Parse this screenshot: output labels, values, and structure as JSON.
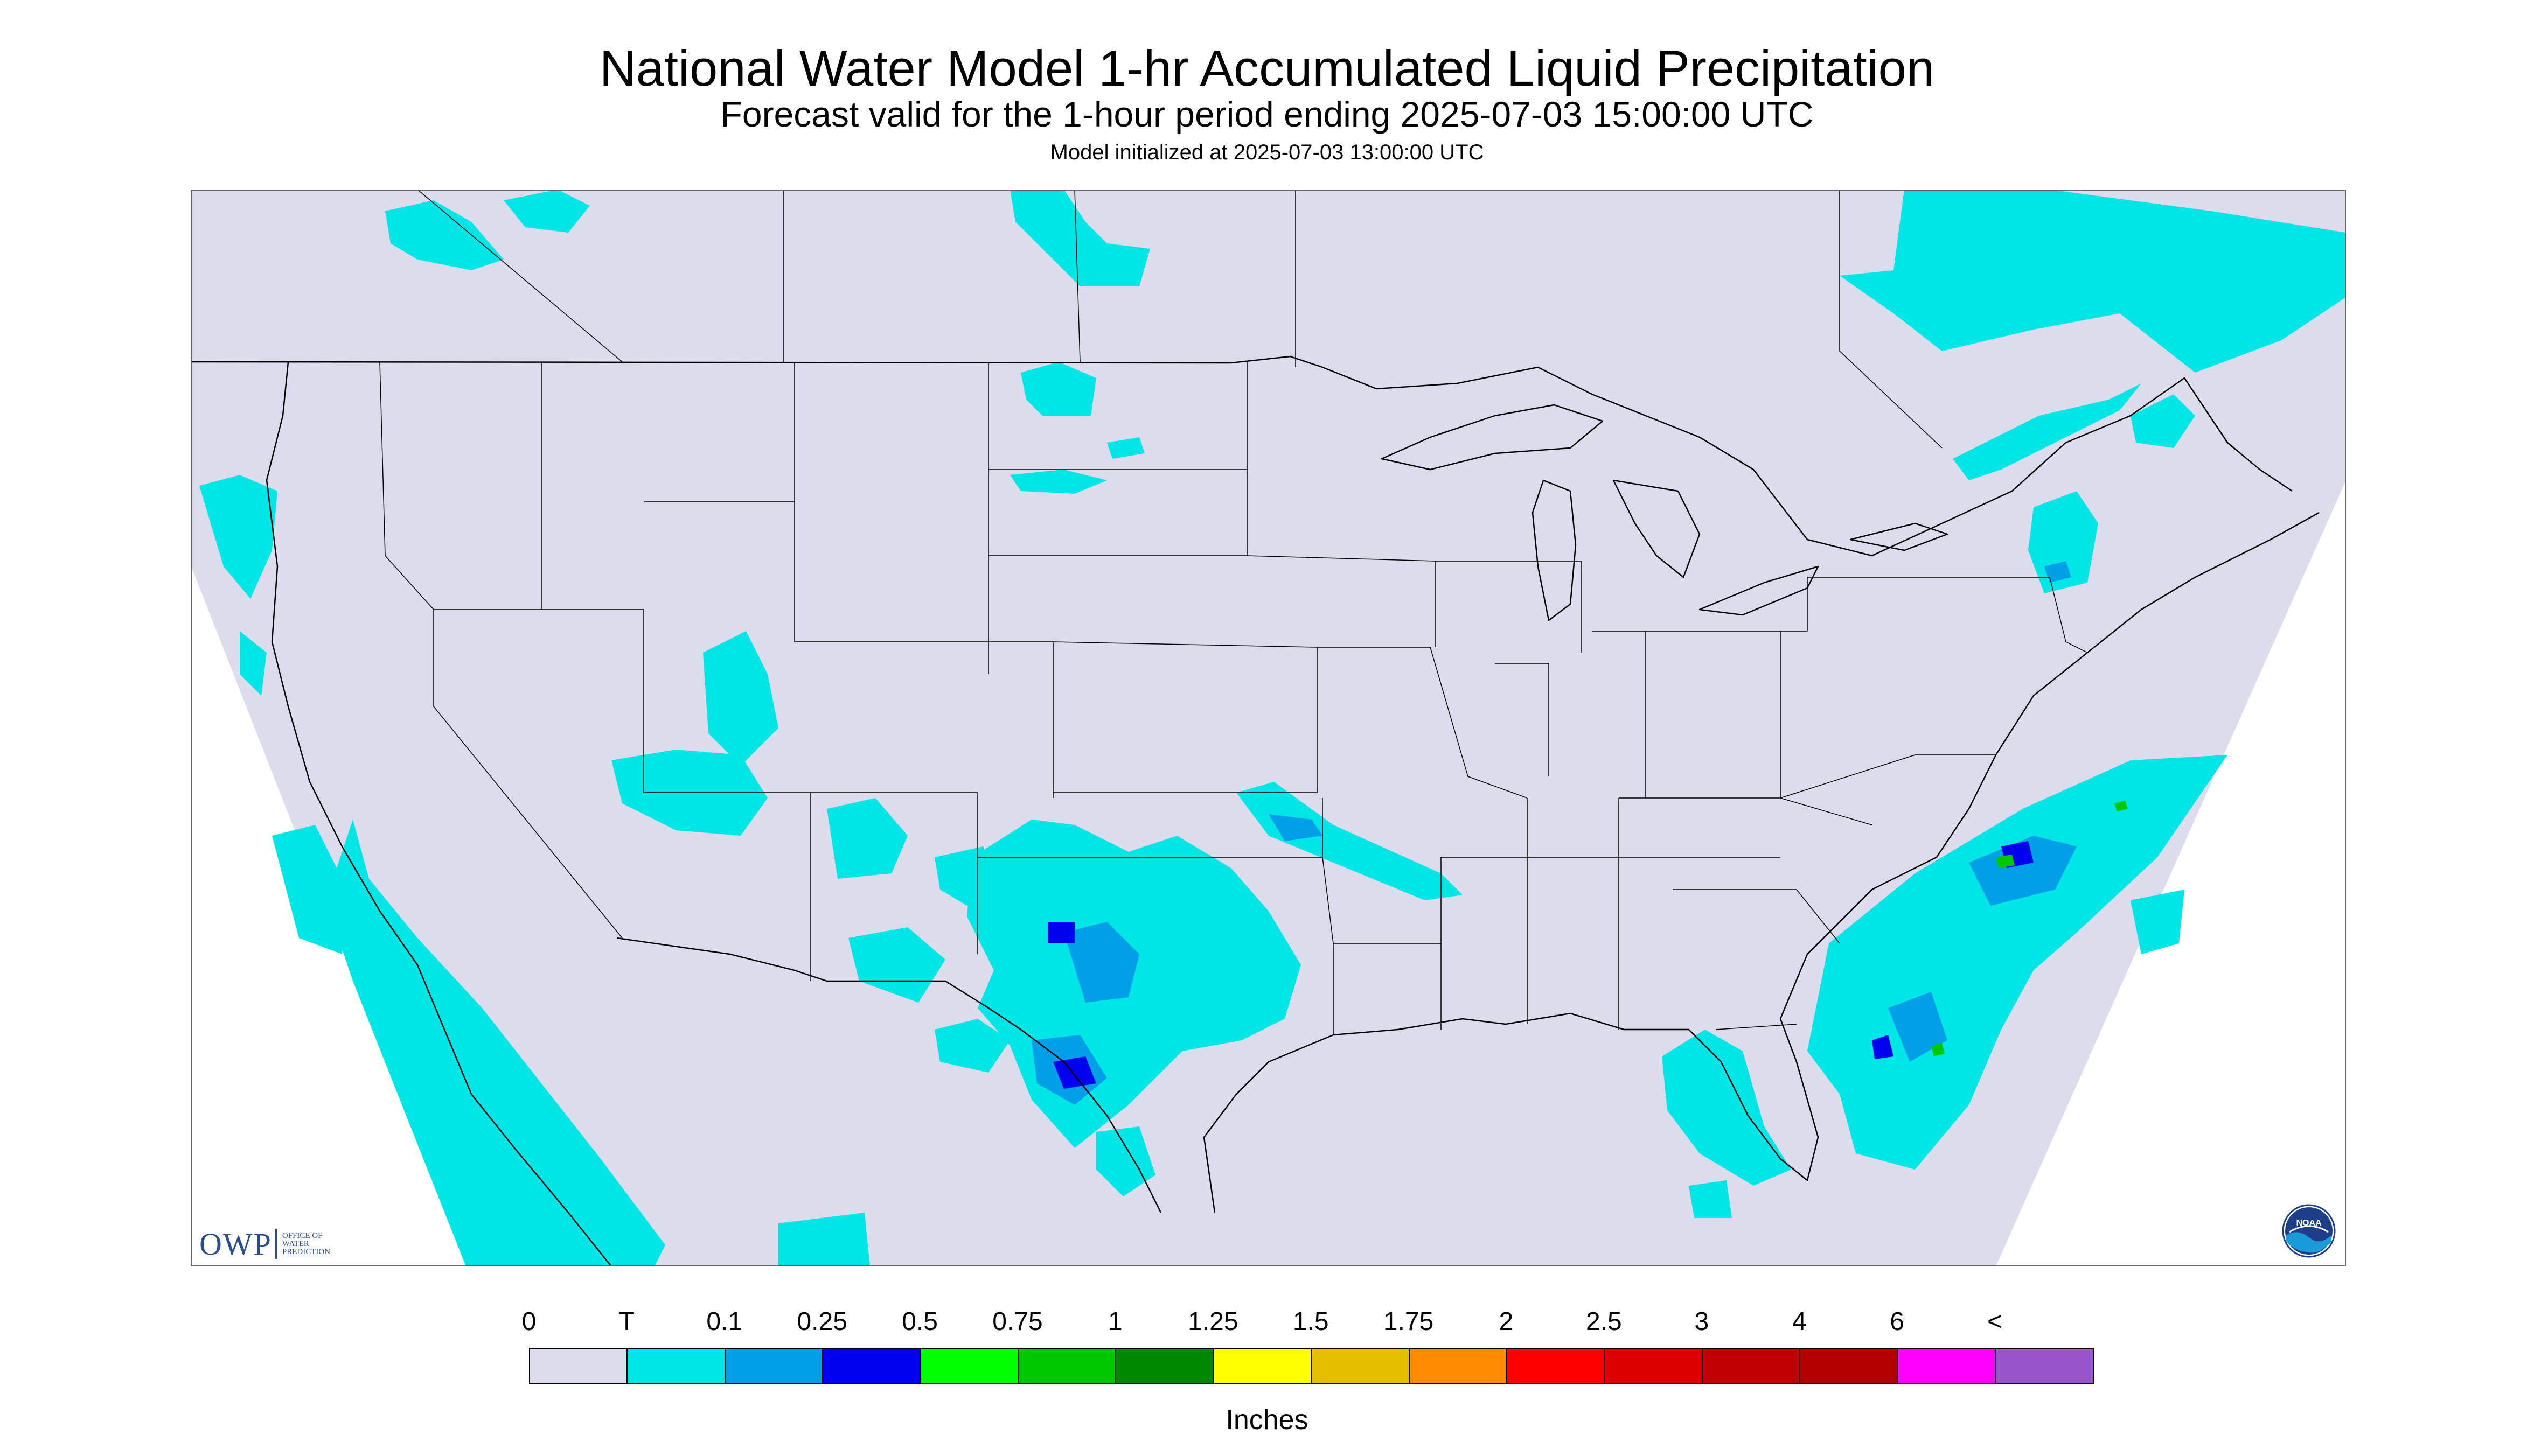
{
  "header": {
    "title": "National Water Model 1-hr Accumulated Liquid Precipitation",
    "subtitle": "Forecast valid for the 1-hour period ending 2025-07-03 15:00:00 UTC",
    "init_line": "Model initialized at 2025-07-03 13:00:00 UTC"
  },
  "map": {
    "region": "CONUS",
    "background_color": "#dcdced",
    "precip_color_light": "#00e5e5",
    "precip_color_mid": "#009fe8",
    "precip_color_heavy": "#0000ee",
    "precip_color_green": "#00c800",
    "boundary_color": "#000000"
  },
  "logos": {
    "owp_letters": "OWP",
    "owp_line1": "OFFICE OF",
    "owp_line2": "WATER",
    "owp_line3": "PREDICTION",
    "noaa_text": "NOAA",
    "owp_icon": "owp-logo",
    "noaa_icon": "noaa-logo"
  },
  "legend": {
    "labels": [
      "0",
      "T",
      "0.1",
      "0.25",
      "0.5",
      "0.75",
      "1",
      "1.25",
      "1.5",
      "1.75",
      "2",
      "2.5",
      "3",
      "4",
      "6",
      "<"
    ],
    "colors": [
      "#dcdced",
      "#00e5e5",
      "#009fe8",
      "#0000ee",
      "#00ff00",
      "#00c800",
      "#008800",
      "#ffff00",
      "#e6be00",
      "#ff8c00",
      "#ff0000",
      "#dc0000",
      "#c00000",
      "#b40000",
      "#ff00ff",
      "#9955cc"
    ],
    "units": "Inches"
  }
}
